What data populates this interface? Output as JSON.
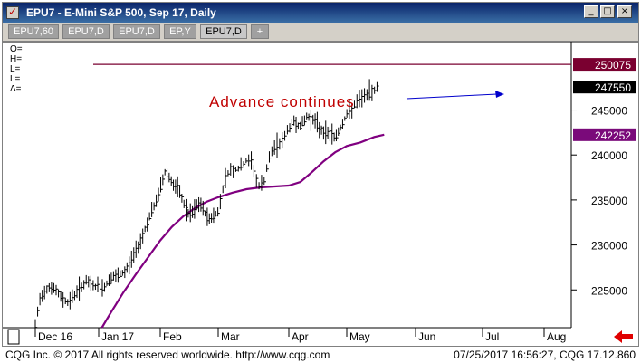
{
  "window": {
    "title": "EPU7 - E-Mini S&P 500, Sep 17, Daily",
    "controls": {
      "minimize": "_",
      "restore": "□",
      "close": "×"
    }
  },
  "tabs": [
    {
      "label": "EPU7,60",
      "active": false
    },
    {
      "label": "EPU7,D",
      "active": false
    },
    {
      "label": "EPU7,D",
      "active": false
    },
    {
      "label": "EP,Y",
      "active": false
    },
    {
      "label": "EPU7,D",
      "active": true
    },
    {
      "label": "+",
      "active": false
    }
  ],
  "ohlc_panel": {
    "lines": [
      "O=",
      "H=",
      "L=",
      "L=",
      "Δ="
    ]
  },
  "chart_data": {
    "type": "ohlc-bar",
    "instrument": "EPU7 - E-Mini S&P 500, Sep 17",
    "interval": "Daily",
    "x_axis_labels": [
      "Dec 16",
      "Jan 17",
      "Feb",
      "Mar",
      "Apr",
      "May",
      "Jun",
      "Jul",
      "Aug"
    ],
    "y_axis": {
      "ticks": [
        225000,
        230000,
        235000,
        240000,
        245000
      ],
      "ylim": [
        220800,
        252600
      ]
    },
    "axis_flags": [
      {
        "value": 250075,
        "text": "250075",
        "color": "#7a0030",
        "text_color": "#ffffff"
      },
      {
        "value": 247550,
        "text": "247550",
        "color": "#000000",
        "text_color": "#ffffff"
      },
      {
        "value": 242252,
        "text": "242252",
        "color": "#7a0a7a",
        "text_color": "#ffffff"
      }
    ],
    "horizontal_line": {
      "value": 250075,
      "color": "#7a0030"
    },
    "moving_average": {
      "color": "#800080",
      "points": [
        [
          0.263,
          220800
        ],
        [
          0.3,
          222500
        ],
        [
          0.35,
          224700
        ],
        [
          0.4,
          226700
        ],
        [
          0.45,
          228600
        ],
        [
          0.5,
          230500
        ],
        [
          0.55,
          232000
        ],
        [
          0.6,
          233200
        ],
        [
          0.65,
          234100
        ],
        [
          0.7,
          234800
        ],
        [
          0.75,
          235300
        ],
        [
          0.8,
          235800
        ],
        [
          0.85,
          236200
        ],
        [
          0.9,
          236400
        ],
        [
          0.95,
          236500
        ],
        [
          1.0,
          236600
        ],
        [
          1.05,
          237000
        ],
        [
          1.1,
          238100
        ],
        [
          1.15,
          239300
        ],
        [
          1.2,
          240300
        ],
        [
          1.25,
          241000
        ],
        [
          1.3,
          241400
        ],
        [
          1.35,
          242000
        ],
        [
          1.386,
          242252
        ]
      ]
    },
    "price_bars": {
      "color": "#000000",
      "path": [
        [
          0.0,
          221000
        ],
        [
          0.02,
          224200
        ],
        [
          0.05,
          225400
        ],
        [
          0.08,
          225000
        ],
        [
          0.1,
          224200
        ],
        [
          0.13,
          223600
        ],
        [
          0.16,
          224700
        ],
        [
          0.2,
          225900
        ],
        [
          0.24,
          225400
        ],
        [
          0.27,
          225200
        ],
        [
          0.3,
          226400
        ],
        [
          0.33,
          226500
        ],
        [
          0.36,
          227100
        ],
        [
          0.4,
          229300
        ],
        [
          0.43,
          231200
        ],
        [
          0.46,
          233400
        ],
        [
          0.48,
          234500
        ],
        [
          0.5,
          236300
        ],
        [
          0.52,
          238100
        ],
        [
          0.54,
          237500
        ],
        [
          0.56,
          236500
        ],
        [
          0.58,
          236100
        ],
        [
          0.6,
          234700
        ],
        [
          0.62,
          233400
        ],
        [
          0.64,
          233500
        ],
        [
          0.66,
          234500
        ],
        [
          0.68,
          234300
        ],
        [
          0.7,
          233100
        ],
        [
          0.72,
          233000
        ],
        [
          0.75,
          233700
        ],
        [
          0.77,
          236900
        ],
        [
          0.79,
          238400
        ],
        [
          0.81,
          238300
        ],
        [
          0.83,
          238700
        ],
        [
          0.85,
          239400
        ],
        [
          0.87,
          239200
        ],
        [
          0.89,
          236500
        ],
        [
          0.91,
          236800
        ],
        [
          0.93,
          239600
        ],
        [
          0.95,
          240900
        ],
        [
          0.98,
          241700
        ],
        [
          1.0,
          243000
        ],
        [
          1.02,
          243700
        ],
        [
          1.05,
          243200
        ],
        [
          1.08,
          244300
        ],
        [
          1.11,
          243900
        ],
        [
          1.13,
          243000
        ],
        [
          1.16,
          242400
        ],
        [
          1.18,
          242500
        ],
        [
          1.2,
          241900
        ],
        [
          1.22,
          242900
        ],
        [
          1.25,
          244500
        ],
        [
          1.28,
          245600
        ],
        [
          1.31,
          246500
        ],
        [
          1.34,
          247000
        ],
        [
          1.36,
          247550
        ]
      ]
    },
    "annotation": {
      "text": "Advance continues",
      "color": "#c00000",
      "arrow_color": "#0000cc"
    }
  },
  "footer": {
    "left": "CQG Inc. © 2017 All rights reserved worldwide. http://www.cqg.com",
    "right": "07/25/2017 16:56:27, CQG 17.12.860"
  }
}
